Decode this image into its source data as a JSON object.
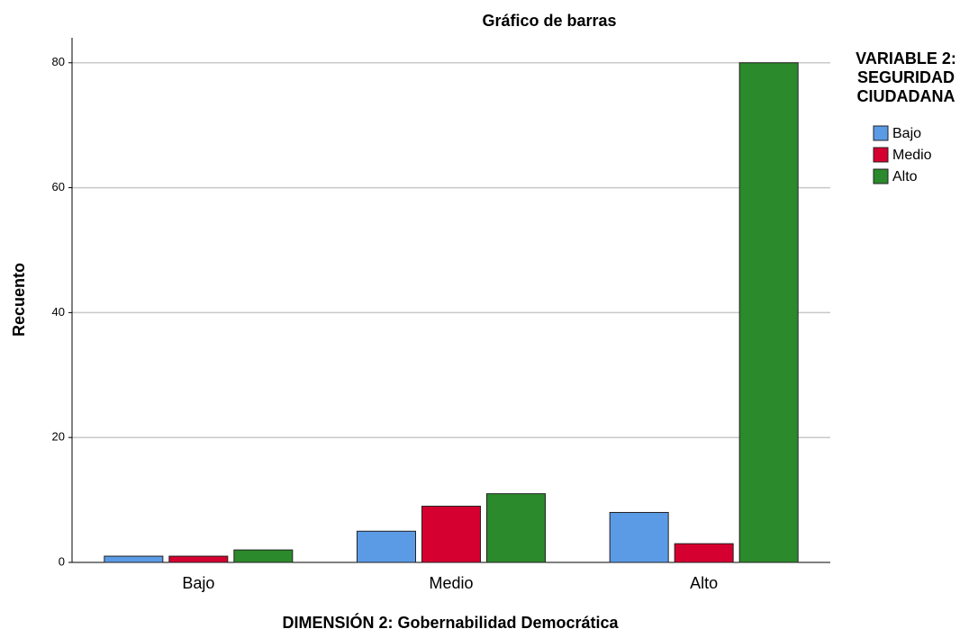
{
  "chart_data": {
    "type": "bar",
    "title": "Gráfico de barras",
    "x_label": "DIMENSIÓN 2: Gobernabilidad Democrática",
    "y_label": "Recuento",
    "legend_title": [
      "VARIABLE 2:",
      "SEGURIDAD",
      "CIUDADANA"
    ],
    "categories": [
      "Bajo",
      "Medio",
      "Alto"
    ],
    "series": [
      {
        "name": "Bajo",
        "color": "#5b9be6",
        "values": [
          1,
          5,
          8
        ]
      },
      {
        "name": "Medio",
        "color": "#d5002f",
        "values": [
          1,
          9,
          3
        ]
      },
      {
        "name": "Alto",
        "color": "#2b8a2b",
        "values": [
          2,
          11,
          80
        ]
      }
    ],
    "ylim": [
      0,
      84
    ],
    "yticks": [
      0,
      20,
      40,
      60,
      80
    ],
    "grid": true,
    "legend": "right"
  }
}
